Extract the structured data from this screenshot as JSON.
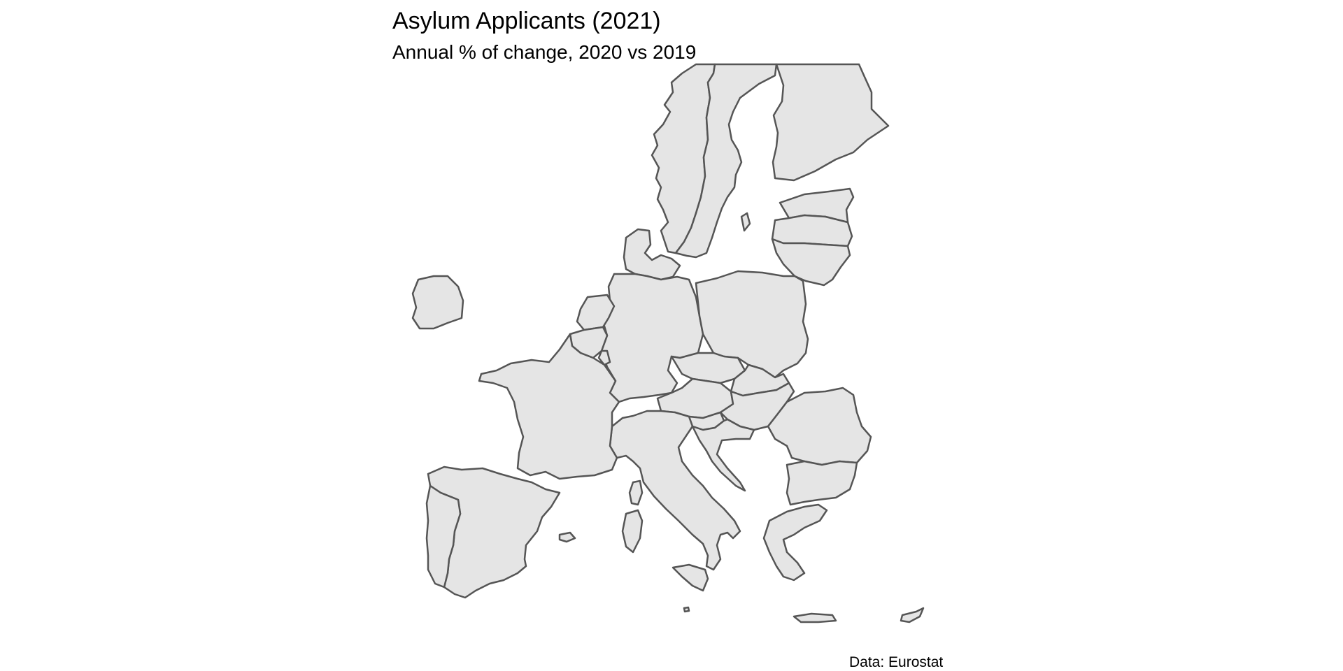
{
  "title": "Asylum Applicants (2021)",
  "subtitle": "Annual % of change, 2020 vs 2019",
  "caption": "Data: Eurostat",
  "colors": {
    "land_fill": "#e5e5e5",
    "border": "#555555",
    "background": "#ffffff"
  }
}
